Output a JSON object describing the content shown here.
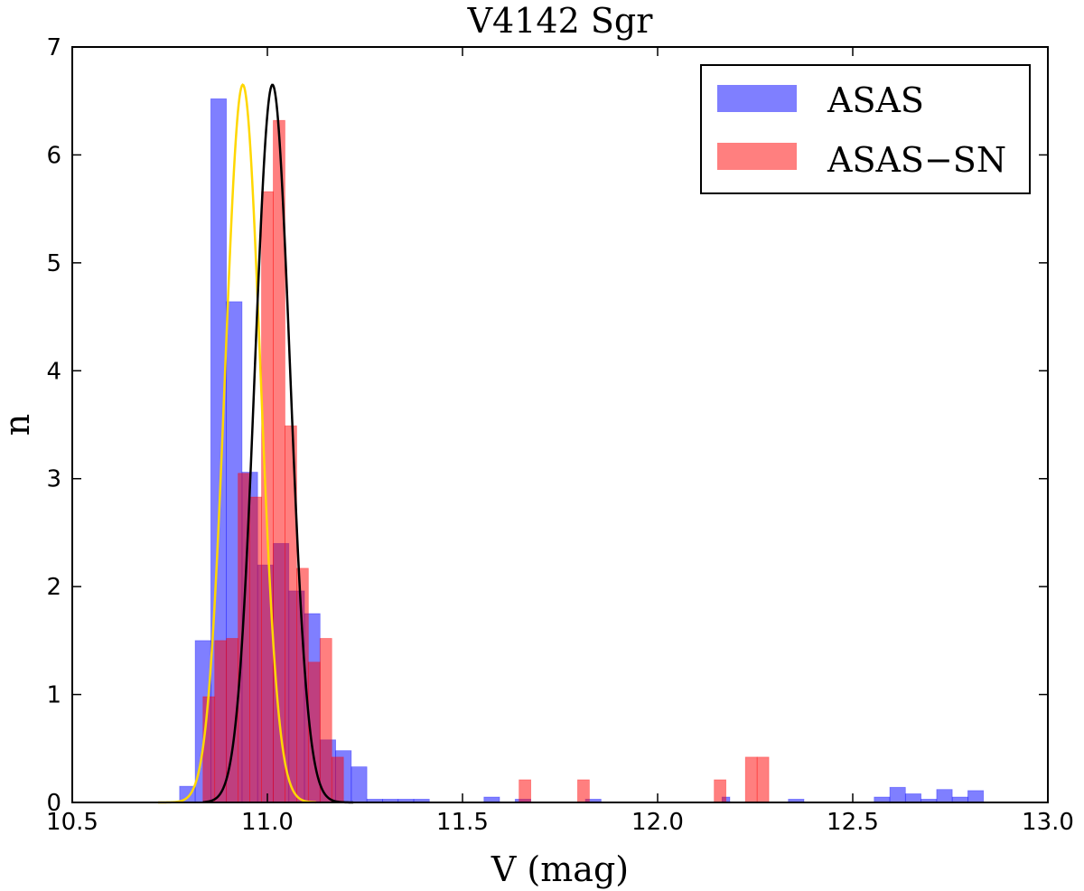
{
  "chart_data": {
    "type": "histogram",
    "title": "V4142 Sgr",
    "xlabel": "V (mag)",
    "ylabel": "n",
    "xlim": [
      10.5,
      13.0
    ],
    "ylim": [
      0,
      7
    ],
    "xticks": [
      "10.5",
      "11.0",
      "11.5",
      "12.0",
      "12.5",
      "13.0"
    ],
    "yticks": [
      "0",
      "1",
      "2",
      "3",
      "4",
      "5",
      "6",
      "7"
    ],
    "grid": false,
    "legend_position": "top-right",
    "series": [
      {
        "name": "ASAS",
        "color": "#0000ff",
        "opacity": 0.5,
        "bins": [
          {
            "x0": 10.775,
            "x1": 10.815,
            "y": 0.15
          },
          {
            "x0": 10.815,
            "x1": 10.855,
            "y": 1.5
          },
          {
            "x0": 10.855,
            "x1": 10.895,
            "y": 6.52
          },
          {
            "x0": 10.895,
            "x1": 10.935,
            "y": 4.64
          },
          {
            "x0": 10.935,
            "x1": 10.975,
            "y": 3.06
          },
          {
            "x0": 10.975,
            "x1": 11.015,
            "y": 2.2
          },
          {
            "x0": 11.015,
            "x1": 11.055,
            "y": 2.4
          },
          {
            "x0": 11.055,
            "x1": 11.095,
            "y": 1.96
          },
          {
            "x0": 11.095,
            "x1": 11.135,
            "y": 1.75
          },
          {
            "x0": 11.135,
            "x1": 11.175,
            "y": 0.58
          },
          {
            "x0": 11.175,
            "x1": 11.215,
            "y": 0.48
          },
          {
            "x0": 11.215,
            "x1": 11.255,
            "y": 0.33
          },
          {
            "x0": 11.255,
            "x1": 11.295,
            "y": 0.03
          },
          {
            "x0": 11.295,
            "x1": 11.335,
            "y": 0.03
          },
          {
            "x0": 11.335,
            "x1": 11.375,
            "y": 0.03
          },
          {
            "x0": 11.375,
            "x1": 11.415,
            "y": 0.03
          },
          {
            "x0": 11.555,
            "x1": 11.595,
            "y": 0.05
          },
          {
            "x0": 11.635,
            "x1": 11.675,
            "y": 0.03
          },
          {
            "x0": 11.815,
            "x1": 11.855,
            "y": 0.03
          },
          {
            "x0": 12.165,
            "x1": 12.185,
            "y": 0.05
          },
          {
            "x0": 12.335,
            "x1": 12.375,
            "y": 0.03
          },
          {
            "x0": 12.555,
            "x1": 12.595,
            "y": 0.05
          },
          {
            "x0": 12.595,
            "x1": 12.635,
            "y": 0.14
          },
          {
            "x0": 12.635,
            "x1": 12.675,
            "y": 0.08
          },
          {
            "x0": 12.675,
            "x1": 12.715,
            "y": 0.03
          },
          {
            "x0": 12.715,
            "x1": 12.755,
            "y": 0.12
          },
          {
            "x0": 12.755,
            "x1": 12.795,
            "y": 0.05
          },
          {
            "x0": 12.795,
            "x1": 12.835,
            "y": 0.11
          }
        ]
      },
      {
        "name": "ASAS−SN",
        "color": "#ff0000",
        "opacity": 0.5,
        "bins": [
          {
            "x0": 10.835,
            "x1": 10.865,
            "y": 0.98
          },
          {
            "x0": 10.865,
            "x1": 10.895,
            "y": 1.5
          },
          {
            "x0": 10.895,
            "x1": 10.925,
            "y": 1.52
          },
          {
            "x0": 10.925,
            "x1": 10.955,
            "y": 3.05
          },
          {
            "x0": 10.955,
            "x1": 10.985,
            "y": 2.83
          },
          {
            "x0": 10.985,
            "x1": 11.015,
            "y": 5.66
          },
          {
            "x0": 11.015,
            "x1": 11.045,
            "y": 6.32
          },
          {
            "x0": 11.045,
            "x1": 11.075,
            "y": 3.49
          },
          {
            "x0": 11.075,
            "x1": 11.105,
            "y": 2.17
          },
          {
            "x0": 11.105,
            "x1": 11.135,
            "y": 1.3
          },
          {
            "x0": 11.135,
            "x1": 11.165,
            "y": 1.52
          },
          {
            "x0": 11.165,
            "x1": 11.195,
            "y": 0.42
          },
          {
            "x0": 11.645,
            "x1": 11.675,
            "y": 0.21
          },
          {
            "x0": 11.795,
            "x1": 11.825,
            "y": 0.21
          },
          {
            "x0": 12.145,
            "x1": 12.175,
            "y": 0.21
          },
          {
            "x0": 12.225,
            "x1": 12.255,
            "y": 0.42
          },
          {
            "x0": 12.255,
            "x1": 12.285,
            "y": 0.42
          }
        ]
      }
    ],
    "curves": [
      {
        "color": "#ffd700",
        "mu": 10.937,
        "sigma": 0.045,
        "peak": 6.65,
        "xrange": [
          10.72,
          11.125
        ]
      },
      {
        "color": "#000000",
        "mu": 11.013,
        "sigma": 0.045,
        "peak": 6.65,
        "xrange": [
          10.835,
          11.22
        ]
      }
    ]
  }
}
